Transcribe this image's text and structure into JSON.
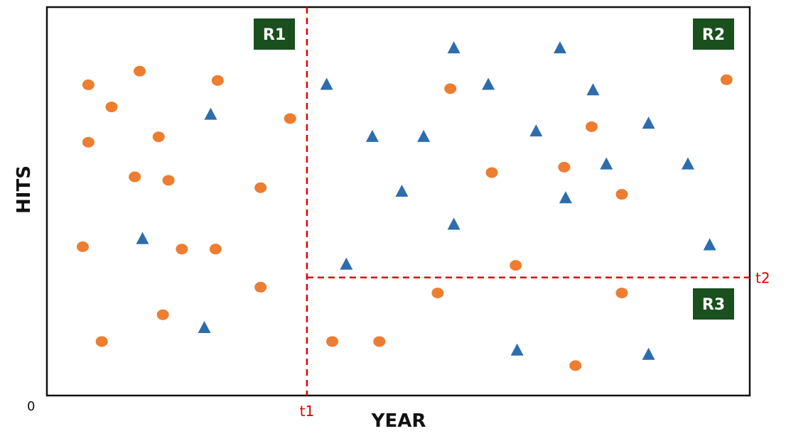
{
  "chart_data": {
    "type": "scatter",
    "title": "",
    "xlabel": "YEAR",
    "ylabel": "HITS",
    "origin_label": "0",
    "xlim": [
      0,
      100
    ],
    "ylim": [
      0,
      100
    ],
    "grid": false,
    "legend": "none",
    "colors": {
      "circle": "#ED7D31",
      "triangle": "#2E6DAD",
      "split_line": "#E00000",
      "region_box": "#1A4F1E",
      "frame": "#111111"
    },
    "splits": [
      {
        "label": "t1",
        "axis": "x",
        "value": 37,
        "range": [
          0,
          100
        ]
      },
      {
        "label": "t2",
        "axis": "y",
        "value": 30.4,
        "range": [
          37,
          100
        ]
      }
    ],
    "regions": [
      {
        "label": "R1"
      },
      {
        "label": "R2"
      },
      {
        "label": "R3"
      }
    ],
    "series": [
      {
        "marker": "circle",
        "points": [
          [
            5.9,
            80.0
          ],
          [
            13.2,
            83.5
          ],
          [
            24.3,
            81.1
          ],
          [
            9.2,
            74.3
          ],
          [
            15.9,
            66.6
          ],
          [
            5.9,
            65.2
          ],
          [
            12.5,
            56.3
          ],
          [
            17.3,
            55.4
          ],
          [
            30.4,
            53.5
          ],
          [
            5.1,
            38.3
          ],
          [
            19.2,
            37.7
          ],
          [
            24.0,
            37.7
          ],
          [
            30.4,
            27.9
          ],
          [
            16.5,
            20.8
          ],
          [
            7.8,
            13.9
          ],
          [
            34.6,
            71.3
          ],
          [
            57.4,
            79.0
          ],
          [
            77.5,
            69.2
          ],
          [
            96.7,
            81.3
          ],
          [
            63.3,
            57.4
          ],
          [
            73.6,
            58.8
          ],
          [
            81.8,
            51.8
          ],
          [
            66.7,
            33.5
          ],
          [
            55.6,
            26.4
          ],
          [
            81.8,
            26.4
          ],
          [
            40.6,
            13.9
          ],
          [
            47.3,
            13.9
          ],
          [
            75.2,
            7.7
          ]
        ]
      },
      {
        "marker": "triangle",
        "points": [
          [
            23.3,
            72.3
          ],
          [
            13.6,
            40.3
          ],
          [
            22.4,
            17.4
          ],
          [
            39.8,
            80.0
          ],
          [
            57.9,
            89.4
          ],
          [
            62.8,
            80.0
          ],
          [
            73.0,
            89.4
          ],
          [
            77.7,
            78.6
          ],
          [
            46.3,
            66.6
          ],
          [
            53.6,
            66.6
          ],
          [
            69.6,
            68.0
          ],
          [
            85.6,
            70.0
          ],
          [
            50.5,
            52.5
          ],
          [
            73.8,
            50.8
          ],
          [
            79.6,
            59.5
          ],
          [
            91.2,
            59.5
          ],
          [
            57.9,
            44.0
          ],
          [
            42.6,
            33.7
          ],
          [
            94.3,
            38.7
          ],
          [
            66.9,
            11.6
          ],
          [
            85.6,
            10.5
          ]
        ]
      }
    ]
  }
}
